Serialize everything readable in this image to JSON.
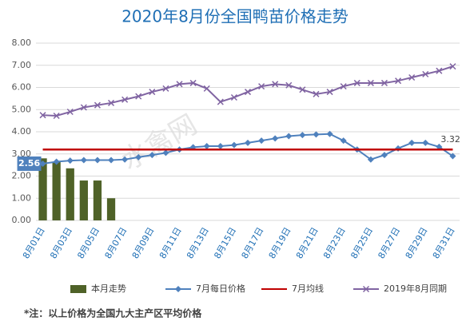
{
  "chart_data": {
    "type": "combo",
    "title": "2020年8月份全国鸭苗价格走势",
    "note": "*注：以上价格为全国九大主产区平均价格",
    "watermark": "水禽网",
    "categories": [
      "8月01日",
      null,
      "8月03日",
      null,
      "8月05日",
      null,
      "8月07日",
      null,
      "8月09日",
      null,
      "8月11日",
      null,
      "8月13日",
      null,
      "8月15日",
      null,
      "8月17日",
      null,
      "8月19日",
      null,
      "8月21日",
      null,
      "8月23日",
      null,
      "8月25日",
      null,
      "8月27日",
      null,
      "8月29日",
      null,
      "8月31日"
    ],
    "ylim": [
      0,
      8
    ],
    "yticks": [
      {
        "value": 0,
        "label": "0.00"
      },
      {
        "value": 1,
        "label": "1.00"
      },
      {
        "value": 2,
        "label": "2.00"
      },
      {
        "value": 3,
        "label": "3.00"
      },
      {
        "value": 4,
        "label": "4.00"
      },
      {
        "value": 5,
        "label": "5.00"
      },
      {
        "value": 6,
        "label": "6.00"
      },
      {
        "value": 7,
        "label": "7.00"
      },
      {
        "value": 8,
        "label": "8.00"
      }
    ],
    "grid": true,
    "legend": "bottom",
    "series": [
      {
        "name": "本月走势",
        "type": "bar",
        "color": "#4f6228",
        "values": [
          2.8,
          2.65,
          2.35,
          1.8,
          1.8,
          1.0,
          null,
          null,
          null,
          null,
          null,
          null,
          null,
          null,
          null,
          null,
          null,
          null,
          null,
          null,
          null,
          null,
          null,
          null,
          null,
          null,
          null,
          null,
          null,
          null,
          null
        ]
      },
      {
        "name": "7月每日价格",
        "type": "line",
        "marker": "diamond",
        "color": "#4f81bd",
        "values": [
          2.56,
          2.65,
          2.7,
          2.72,
          2.72,
          2.72,
          2.75,
          2.85,
          2.95,
          3.05,
          3.2,
          3.3,
          3.35,
          3.35,
          3.4,
          3.5,
          3.6,
          3.7,
          3.8,
          3.85,
          3.88,
          3.9,
          3.6,
          3.2,
          2.75,
          2.95,
          3.25,
          3.5,
          3.5,
          3.32,
          2.9
        ],
        "value_labels": [
          "2.56",
          null,
          null,
          null,
          null,
          null,
          null,
          null,
          null,
          null,
          null,
          null,
          null,
          null,
          null,
          null,
          null,
          null,
          null,
          null,
          null,
          null,
          null,
          null,
          null,
          null,
          null,
          null,
          null,
          "3.32",
          null
        ]
      },
      {
        "name": "7月均线",
        "type": "hline",
        "color": "#c00000",
        "value": 3.2
      },
      {
        "name": "2019年8月同期",
        "type": "line",
        "marker": "x",
        "color": "#8064a2",
        "values": [
          4.75,
          4.72,
          4.9,
          5.1,
          5.2,
          5.3,
          5.45,
          5.6,
          5.8,
          5.95,
          6.15,
          6.2,
          5.95,
          5.35,
          5.55,
          5.8,
          6.05,
          6.15,
          6.1,
          5.9,
          5.7,
          5.8,
          6.05,
          6.2,
          6.2,
          6.2,
          6.3,
          6.45,
          6.6,
          6.75,
          6.95
        ]
      }
    ]
  }
}
